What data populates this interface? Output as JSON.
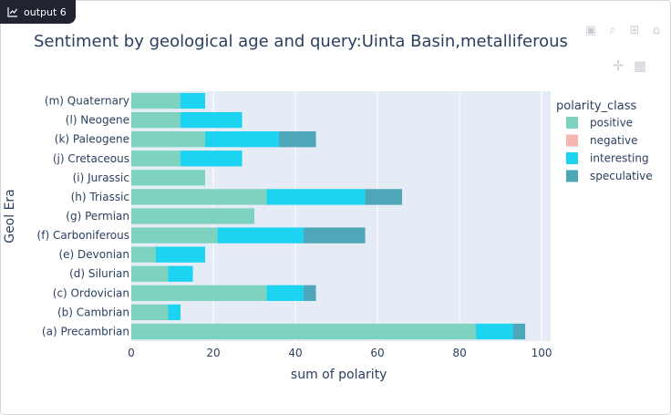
{
  "output_tab": {
    "label": "output 6",
    "icon": "chart-icon"
  },
  "toolbar": {
    "icons": [
      "camera-icon",
      "zoom-icon",
      "pan-icon",
      "autoscale-icon"
    ]
  },
  "chart_data": {
    "type": "bar",
    "orientation": "horizontal",
    "barmode": "stack",
    "title": "Sentiment by geological age and query:Uinta Basin,metalliferous",
    "xlabel": "sum of polarity",
    "ylabel": "Geol Era",
    "xlim": [
      0,
      100
    ],
    "xticks": [
      0,
      20,
      40,
      60,
      80,
      100
    ],
    "grid": true,
    "legend_title": "polarity_class",
    "legend_position": "right",
    "categories": [
      "(a) Precambrian",
      "(b) Cambrian",
      "(c) Ordovician",
      "(d) Silurian",
      "(e) Devonian",
      "(f) Carboniferous",
      "(g) Permian",
      "(h) Triassic",
      "(i) Jurassic",
      "(j) Cretaceous",
      "(k) Paleogene",
      "(l) Neogene",
      "(m) Quaternary"
    ],
    "series": [
      {
        "name": "positive",
        "color": "#7dd3c0",
        "values": [
          84,
          9,
          33,
          9,
          6,
          21,
          30,
          33,
          18,
          12,
          18,
          12,
          12
        ]
      },
      {
        "name": "negative",
        "color": "#f7b7b1",
        "values": [
          0,
          0,
          0,
          0,
          0,
          0,
          0,
          0,
          0,
          0,
          0,
          0,
          0
        ]
      },
      {
        "name": "interesting",
        "color": "#1cd3f1",
        "values": [
          9,
          3,
          9,
          6,
          12,
          21,
          0,
          24,
          0,
          15,
          18,
          15,
          6
        ]
      },
      {
        "name": "speculative",
        "color": "#4da7b8",
        "values": [
          3,
          0,
          3,
          0,
          0,
          15,
          0,
          9,
          0,
          0,
          9,
          0,
          0
        ]
      }
    ]
  }
}
